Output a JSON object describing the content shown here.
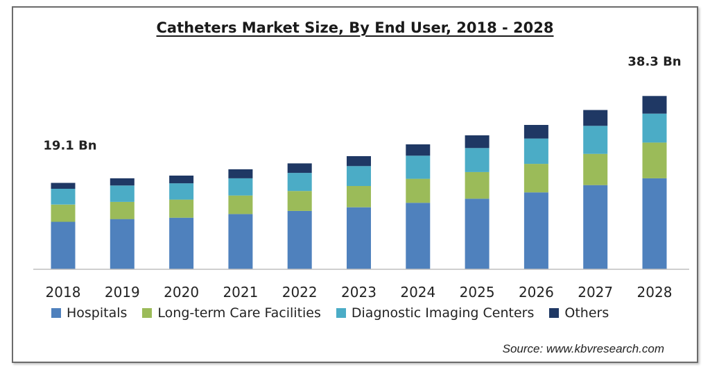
{
  "title": "Catheters Market Size, By End User, 2018 - 2028",
  "source": "Source:  www.kbvresearch.com",
  "colors": {
    "hospitals": "#4f81bd",
    "long_term": "#9bbb59",
    "diagnostic": "#4bacc6",
    "others": "#1f3864",
    "axis": "#bfbfbf"
  },
  "chart_data": {
    "type": "bar",
    "stacked": true,
    "categories": [
      "2018",
      "2019",
      "2020",
      "2021",
      "2022",
      "2023",
      "2024",
      "2025",
      "2026",
      "2027",
      "2028"
    ],
    "series": [
      {
        "name": "Hospitals",
        "color": "#4f81bd",
        "values": [
          10.5,
          11.1,
          11.4,
          12.2,
          12.9,
          13.7,
          14.7,
          15.6,
          17.0,
          18.6,
          20.1
        ]
      },
      {
        "name": "Long-term Care Facilities",
        "color": "#9bbb59",
        "values": [
          3.8,
          3.8,
          4.0,
          4.1,
          4.4,
          4.7,
          5.3,
          5.9,
          6.3,
          6.9,
          7.9
        ]
      },
      {
        "name": "Diagnostic Imaging Centers",
        "color": "#4bacc6",
        "values": [
          3.5,
          3.6,
          3.6,
          3.8,
          4.0,
          4.4,
          5.1,
          5.3,
          5.6,
          6.2,
          6.4
        ]
      },
      {
        "name": "Others",
        "color": "#1f3864",
        "values": [
          1.3,
          1.6,
          1.7,
          2.0,
          2.1,
          2.2,
          2.5,
          2.8,
          3.0,
          3.5,
          3.9
        ]
      }
    ],
    "annotations": [
      {
        "category": "2018",
        "text": "19.1 Bn"
      },
      {
        "category": "2028",
        "text": "38.3 Bn"
      }
    ],
    "ylim": [
      0,
      40
    ],
    "grid": false,
    "legend": "bottom"
  }
}
